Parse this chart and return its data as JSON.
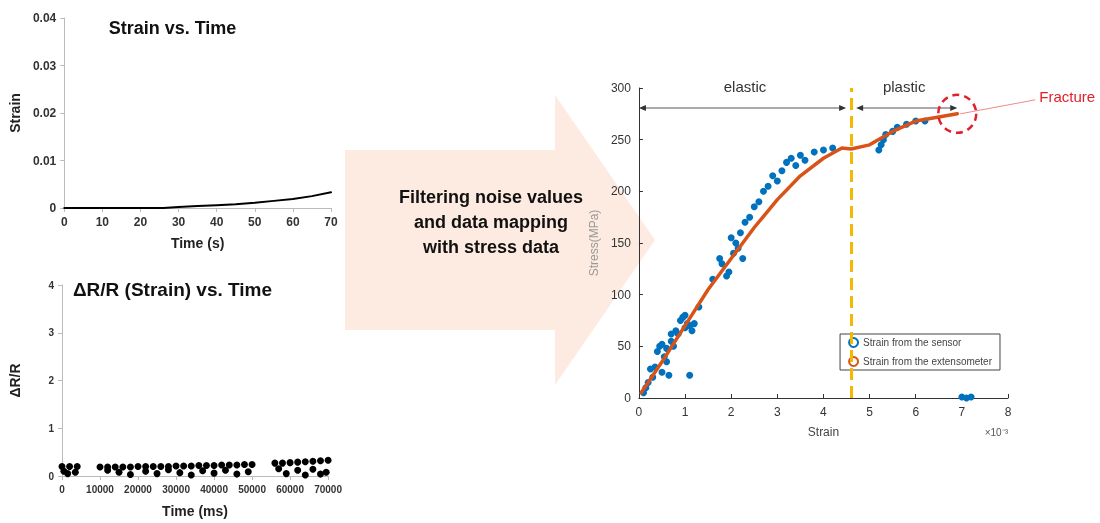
{
  "chart_data": [
    {
      "type": "line",
      "title": "Strain vs. Time",
      "xlabel": "Time (s)",
      "ylabel": "Strain",
      "x": [
        0,
        10,
        20,
        26,
        30,
        35,
        40,
        45,
        50,
        55,
        60,
        65,
        70
      ],
      "values": [
        0,
        0,
        0,
        0,
        0.0002,
        0.0004,
        0.0006,
        0.0008,
        0.0011,
        0.0015,
        0.0019,
        0.0025,
        0.0033
      ],
      "color": "#000000",
      "marker": "none",
      "xlim": [
        0,
        70
      ],
      "xticks": [
        0,
        10,
        20,
        30,
        40,
        50,
        60,
        70
      ],
      "ylim": [
        0,
        0.04
      ],
      "yticks": [
        0,
        0.01,
        0.02,
        0.03,
        0.04
      ]
    },
    {
      "type": "scatter",
      "title": "ΔR/R (Strain) vs. Time",
      "xlabel": "Time (ms)",
      "ylabel": "ΔR/R",
      "x": [
        0,
        2000,
        4000,
        10000,
        12000,
        14000,
        16000,
        18000,
        20000,
        22000,
        24000,
        26000,
        28000,
        30000,
        32000,
        34000,
        36000,
        38000,
        40000,
        42000,
        44000,
        46000,
        48000,
        50000,
        56000,
        58000,
        60000,
        62000,
        64000,
        66000,
        68000,
        70000,
        500,
        1500,
        3500,
        12000,
        15000,
        18000,
        22000,
        25000,
        28000,
        31000,
        34000,
        37000,
        40000,
        43000,
        46000,
        49000,
        57000,
        59000,
        62000,
        64000,
        66000,
        68000,
        69500
      ],
      "values": [
        0.2,
        0.2,
        0.2,
        0.19,
        0.19,
        0.19,
        0.19,
        0.19,
        0.2,
        0.2,
        0.2,
        0.2,
        0.2,
        0.21,
        0.21,
        0.21,
        0.22,
        0.22,
        0.22,
        0.23,
        0.23,
        0.23,
        0.24,
        0.24,
        0.27,
        0.27,
        0.28,
        0.29,
        0.3,
        0.31,
        0.32,
        0.33,
        0.1,
        0.05,
        0.08,
        0.12,
        0.08,
        0.03,
        0.1,
        0.05,
        0.13,
        0.07,
        0.02,
        0.11,
        0.06,
        0.12,
        0.04,
        0.09,
        0.15,
        0.05,
        0.12,
        0.02,
        0.14,
        0.04,
        0.08
      ],
      "color": "#000000",
      "marker": "circle",
      "xlim": [
        0,
        70000
      ],
      "xticks": [
        0,
        10000,
        20000,
        30000,
        40000,
        50000,
        60000,
        70000
      ],
      "ylim": [
        0,
        4
      ],
      "yticks": [
        0,
        1,
        2,
        3,
        4
      ]
    },
    {
      "type": "other",
      "title": "Filtering noise values and data mapping with stress data"
    },
    {
      "type": "scatter",
      "xlabel": "Strain",
      "ylabel": "Stress(MPa)",
      "series": [
        {
          "name": "Strain from the sensor",
          "type": "scatter",
          "color": "#0072bd",
          "marker": "circle",
          "x": [
            0.1,
            0.15,
            0.2,
            0.25,
            0.3,
            0.35,
            0.4,
            0.45,
            0.5,
            0.5,
            0.55,
            0.6,
            0.6,
            0.65,
            0.7,
            0.7,
            0.75,
            0.8,
            0.85,
            0.9,
            0.95,
            1.0,
            1.0,
            1.05,
            1.1,
            1.15,
            1.2,
            1.1,
            1.3,
            1.6,
            1.75,
            1.8,
            1.9,
            1.95,
            2.0,
            2.05,
            2.1,
            2.15,
            2.2,
            2.25,
            2.3,
            2.4,
            2.5,
            2.6,
            2.7,
            2.8,
            2.9,
            3.0,
            3.1,
            3.2,
            3.3,
            3.4,
            3.5,
            3.6,
            3.8,
            4.0,
            4.2,
            5.2,
            5.25,
            5.3,
            5.35,
            5.5,
            5.6,
            5.8,
            6.0,
            6.2,
            7.0,
            7.1,
            7.2
          ],
          "values": [
            5,
            10,
            15,
            28,
            20,
            30,
            45,
            50,
            25,
            52,
            40,
            35,
            48,
            22,
            55,
            62,
            50,
            65,
            62,
            75,
            78,
            80,
            68,
            72,
            70,
            65,
            72,
            22,
            88,
            115,
            135,
            130,
            118,
            122,
            155,
            140,
            150,
            145,
            160,
            135,
            170,
            175,
            185,
            190,
            200,
            205,
            215,
            210,
            220,
            228,
            232,
            225,
            235,
            230,
            238,
            240,
            242,
            240,
            245,
            250,
            255,
            258,
            262,
            265,
            268,
            268,
            1,
            0,
            1
          ]
        },
        {
          "name": "Strain from the extensometer",
          "type": "line",
          "color": "#d95319",
          "marker": "none",
          "x": [
            0.05,
            0.5,
            1,
            1.5,
            2,
            2.5,
            3,
            3.5,
            4,
            4.4,
            4.6,
            5,
            5.5,
            6,
            6.5,
            6.9
          ],
          "values": [
            5,
            35,
            70,
            105,
            135,
            165,
            192,
            215,
            232,
            242,
            241,
            245,
            258,
            268,
            272,
            275
          ]
        }
      ],
      "xlim": [
        0,
        8
      ],
      "xticks": [
        0,
        1,
        2,
        3,
        4,
        5,
        6,
        7,
        8
      ],
      "ylim": [
        0,
        300
      ],
      "yticks": [
        0,
        50,
        100,
        150,
        200,
        250,
        300
      ],
      "legend": "bottom right",
      "ref_lines": [
        {
          "axis": "x",
          "value": 4.6,
          "color": "#f5b800",
          "line_style": "dashed"
        }
      ],
      "annotations": [
        "elastic",
        "plastic",
        {
          "text": "Fracture",
          "x": 6.9,
          "y": 275
        },
        "×10⁻³"
      ]
    }
  ]
}
